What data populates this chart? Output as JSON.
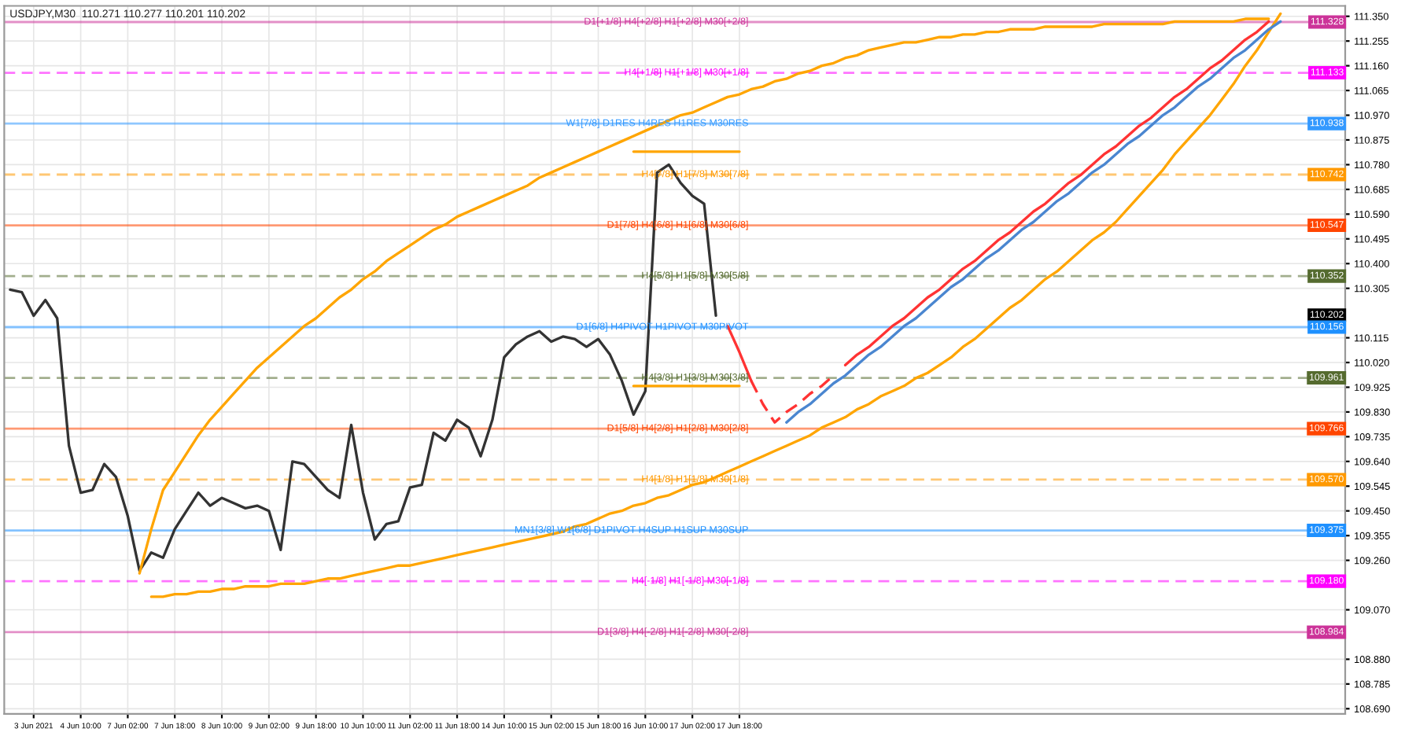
{
  "chart_data": {
    "type": "line",
    "title": "USDJPY,M30  110.271 110.277 110.201 110.202",
    "categories": [
      null,
      null,
      "3 Jun 2021",
      null,
      null,
      null,
      "4 Jun 10:00",
      null,
      null,
      null,
      "7 Jun 02:00",
      null,
      null,
      null,
      "7 Jun 18:00",
      null,
      null,
      null,
      "8 Jun 10:00",
      null,
      null,
      null,
      "9 Jun 02:00",
      null,
      null,
      null,
      "9 Jun 18:00",
      null,
      null,
      null,
      "10 Jun 10:00",
      null,
      null,
      null,
      "11 Jun 02:00",
      null,
      null,
      null,
      "11 Jun 18:00",
      null,
      null,
      null,
      "14 Jun 10:00",
      null,
      null,
      null,
      "15 Jun 02:00",
      null,
      null,
      null,
      "15 Jun 18:00",
      null,
      null,
      null,
      "16 Jun 10:00",
      null,
      null,
      null,
      "17 Jun 02:00",
      null,
      null,
      null,
      "17 Jun 18:00",
      null,
      null,
      null,
      null,
      null,
      null,
      null,
      null,
      null,
      null,
      null,
      null,
      null,
      null,
      null,
      null,
      null,
      null,
      null,
      null,
      null,
      null,
      null,
      null,
      null,
      null,
      null,
      null,
      null,
      null,
      null,
      null,
      null,
      null,
      null,
      null,
      null,
      null,
      null,
      null,
      null,
      null,
      null,
      null,
      null,
      null,
      null,
      null,
      null,
      null,
      null
    ],
    "ylim": [
      108.67,
      111.39
    ],
    "yticks": [
      {
        "value": 111.35,
        "label": "111.350"
      },
      {
        "value": 111.255,
        "label": "111.255"
      },
      {
        "value": 111.16,
        "label": "111.160"
      },
      {
        "value": 111.065,
        "label": "111.065"
      },
      {
        "value": 110.97,
        "label": "110.970"
      },
      {
        "value": 110.875,
        "label": "110.875"
      },
      {
        "value": 110.78,
        "label": "110.780"
      },
      {
        "value": 110.685,
        "label": "110.685"
      },
      {
        "value": 110.59,
        "label": "110.590"
      },
      {
        "value": 110.495,
        "label": "110.495"
      },
      {
        "value": 110.4,
        "label": "110.400"
      },
      {
        "value": 110.305,
        "label": "110.305"
      },
      {
        "value": 110.115,
        "label": "110.115"
      },
      {
        "value": 110.02,
        "label": "110.020"
      },
      {
        "value": 109.925,
        "label": "109.925"
      },
      {
        "value": 109.83,
        "label": "109.830"
      },
      {
        "value": 109.735,
        "label": "109.735"
      },
      {
        "value": 109.64,
        "label": "109.640"
      },
      {
        "value": 109.545,
        "label": "109.545"
      },
      {
        "value": 109.45,
        "label": "109.450"
      },
      {
        "value": 109.355,
        "label": "109.355"
      },
      {
        "value": 109.26,
        "label": "109.260"
      },
      {
        "value": 109.07,
        "label": "109.070"
      },
      {
        "value": 108.88,
        "label": "108.880"
      },
      {
        "value": 108.785,
        "label": "108.785"
      },
      {
        "value": 108.69,
        "label": "108.690"
      }
    ],
    "grid": true,
    "series": [
      {
        "color": "#333333",
        "line_style": "solid",
        "values": [
          110.3,
          110.29,
          110.2,
          110.26,
          110.19,
          109.7,
          109.52,
          109.53,
          109.63,
          109.58,
          109.43,
          109.22,
          109.29,
          109.27,
          109.38,
          109.45,
          109.52,
          109.47,
          109.5,
          109.48,
          109.46,
          109.47,
          109.45,
          109.3,
          109.64,
          109.63,
          109.58,
          109.53,
          109.5,
          109.78,
          109.52,
          109.34,
          109.4,
          109.41,
          109.54,
          109.55,
          109.75,
          109.72,
          109.8,
          109.77,
          109.66,
          109.8,
          110.04,
          110.09,
          110.12,
          110.14,
          110.1,
          110.12,
          110.11,
          110.08,
          110.11,
          110.05,
          109.95,
          109.82,
          109.91,
          110.75,
          110.78,
          110.71,
          110.66,
          110.63,
          110.2,
          null,
          null,
          null,
          null,
          null,
          null,
          null,
          null,
          null,
          null,
          null,
          null,
          null,
          null,
          null,
          null,
          null,
          null,
          null,
          null,
          null,
          null,
          null,
          null,
          null,
          null,
          null,
          null,
          null,
          null,
          null,
          null,
          null,
          null,
          null,
          null,
          null,
          null,
          null,
          null,
          null,
          null,
          null,
          null,
          null,
          null,
          null,
          null,
          null,
          null,
          null,
          null,
          null
        ]
      },
      {
        "color": "#ffa500",
        "line_style": "solid",
        "values": [
          null,
          null,
          null,
          null,
          null,
          null,
          null,
          null,
          null,
          null,
          null,
          109.21,
          109.38,
          109.53,
          109.6,
          109.67,
          109.74,
          109.8,
          109.85,
          109.9,
          109.95,
          110.0,
          110.04,
          110.08,
          110.12,
          110.16,
          110.19,
          110.23,
          110.27,
          110.3,
          110.34,
          110.37,
          110.41,
          110.44,
          110.47,
          110.5,
          110.53,
          110.55,
          110.58,
          110.6,
          110.62,
          110.64,
          110.66,
          110.68,
          110.7,
          110.73,
          110.75,
          110.77,
          110.79,
          110.81,
          110.83,
          110.85,
          110.87,
          110.89,
          110.91,
          110.93,
          110.95,
          110.97,
          110.98,
          111.0,
          111.02,
          111.04,
          111.05,
          111.07,
          111.08,
          111.1,
          111.11,
          111.13,
          111.14,
          111.16,
          111.17,
          111.19,
          111.2,
          111.22,
          111.23,
          111.24,
          111.25,
          111.25,
          111.26,
          111.27,
          111.27,
          111.28,
          111.28,
          111.29,
          111.29,
          111.3,
          111.3,
          111.3,
          111.31,
          111.31,
          111.31,
          111.31,
          111.31,
          111.32,
          111.32,
          111.32,
          111.32,
          111.32,
          111.32,
          111.33,
          111.33,
          111.33,
          111.33,
          111.33,
          111.33,
          111.34,
          111.34,
          111.34,
          null,
          null,
          null,
          null,
          null,
          null
        ]
      },
      {
        "color": "#ffa500",
        "line_style": "solid",
        "values": [
          null,
          null,
          null,
          null,
          null,
          null,
          null,
          null,
          null,
          null,
          null,
          null,
          109.12,
          109.12,
          109.13,
          109.13,
          109.14,
          109.14,
          109.15,
          109.15,
          109.16,
          109.16,
          109.16,
          109.17,
          109.17,
          109.17,
          109.18,
          109.19,
          109.19,
          109.2,
          109.21,
          109.22,
          109.23,
          109.24,
          109.24,
          109.25,
          109.26,
          109.27,
          109.28,
          109.29,
          109.3,
          109.31,
          109.32,
          109.33,
          109.34,
          109.35,
          109.36,
          109.37,
          109.39,
          109.4,
          109.42,
          109.44,
          109.45,
          109.47,
          109.48,
          109.5,
          109.51,
          109.53,
          109.55,
          109.56,
          109.58,
          109.6,
          109.62,
          109.64,
          109.66,
          109.68,
          109.7,
          109.72,
          109.74,
          109.77,
          109.79,
          109.81,
          109.84,
          109.86,
          109.89,
          109.91,
          109.93,
          109.96,
          109.98,
          110.01,
          110.04,
          110.08,
          110.11,
          110.15,
          110.19,
          110.23,
          110.26,
          110.3,
          110.34,
          110.37,
          110.41,
          110.45,
          110.49,
          110.52,
          110.56,
          110.61,
          110.66,
          110.71,
          110.76,
          110.82,
          110.87,
          110.92,
          110.97,
          111.03,
          111.09,
          111.16,
          111.22,
          111.29,
          111.36,
          null,
          null,
          null,
          null,
          null
        ]
      },
      {
        "color": "#ffa500",
        "line_style": "solid",
        "values": [
          null,
          null,
          null,
          null,
          null,
          null,
          null,
          null,
          null,
          null,
          null,
          null,
          null,
          null,
          null,
          null,
          null,
          null,
          null,
          null,
          null,
          null,
          null,
          null,
          null,
          null,
          null,
          null,
          null,
          null,
          null,
          null,
          null,
          null,
          null,
          null,
          null,
          null,
          null,
          null,
          null,
          null,
          null,
          null,
          null,
          null,
          null,
          null,
          null,
          null,
          null,
          null,
          null,
          110.83,
          110.83,
          110.83,
          110.83,
          110.83,
          110.83,
          110.83,
          110.83,
          110.83,
          110.83,
          null,
          null,
          null,
          null,
          null,
          null,
          null,
          null,
          null,
          null,
          null,
          null,
          null,
          null,
          null,
          null,
          null,
          null,
          null,
          null,
          null,
          null,
          null,
          null,
          null,
          null,
          null,
          null,
          null,
          null,
          null,
          null,
          null,
          null,
          null,
          null,
          null,
          null,
          null,
          null,
          null,
          null,
          null,
          null,
          null,
          null,
          null,
          null,
          null,
          null,
          null
        ]
      },
      {
        "color": "#ffa500",
        "line_style": "solid",
        "values": [
          null,
          null,
          null,
          null,
          null,
          null,
          null,
          null,
          null,
          null,
          null,
          null,
          null,
          null,
          null,
          null,
          null,
          null,
          null,
          null,
          null,
          null,
          null,
          null,
          null,
          null,
          null,
          null,
          null,
          null,
          null,
          null,
          null,
          null,
          null,
          null,
          null,
          null,
          null,
          null,
          null,
          null,
          null,
          null,
          null,
          null,
          null,
          null,
          null,
          null,
          null,
          null,
          null,
          109.93,
          109.93,
          109.93,
          109.93,
          109.93,
          109.93,
          109.93,
          109.93,
          109.93,
          109.93,
          null,
          null,
          null,
          null,
          null,
          null,
          null,
          null,
          null,
          null,
          null,
          null,
          null,
          null,
          null,
          null,
          null,
          null,
          null,
          null,
          null,
          null,
          null,
          null,
          null,
          null,
          null,
          null,
          null,
          null,
          null,
          null,
          null,
          null,
          null,
          null,
          null,
          null,
          null,
          null,
          null,
          null,
          null,
          null,
          null,
          null,
          null,
          null,
          null,
          null,
          null
        ]
      },
      {
        "color": "#ff3333",
        "line_style": "solid",
        "values": [
          null,
          null,
          null,
          null,
          null,
          null,
          null,
          null,
          null,
          null,
          null,
          null,
          null,
          null,
          null,
          null,
          null,
          null,
          null,
          null,
          null,
          null,
          null,
          null,
          null,
          null,
          null,
          null,
          null,
          null,
          null,
          null,
          null,
          null,
          null,
          null,
          null,
          null,
          null,
          null,
          null,
          null,
          null,
          null,
          null,
          null,
          null,
          null,
          null,
          null,
          null,
          null,
          null,
          null,
          null,
          null,
          null,
          null,
          null,
          null,
          null,
          110.16,
          110.06,
          109.95,
          null,
          null,
          null,
          null,
          null,
          null,
          null,
          null,
          null,
          null,
          null,
          null,
          null,
          null,
          null,
          null,
          null,
          null,
          null,
          null,
          null,
          null,
          null,
          null,
          null,
          null,
          null,
          null,
          null,
          null,
          null,
          null,
          null,
          null,
          null,
          null,
          null,
          null,
          null,
          null,
          null,
          null,
          null,
          null,
          null,
          null,
          null,
          null,
          null,
          null
        ]
      },
      {
        "color": "#ff3333",
        "line_style": "dashed",
        "values": [
          null,
          null,
          null,
          null,
          null,
          null,
          null,
          null,
          null,
          null,
          null,
          null,
          null,
          null,
          null,
          null,
          null,
          null,
          null,
          null,
          null,
          null,
          null,
          null,
          null,
          null,
          null,
          null,
          null,
          null,
          null,
          null,
          null,
          null,
          null,
          null,
          null,
          null,
          null,
          null,
          null,
          null,
          null,
          null,
          null,
          null,
          null,
          null,
          null,
          null,
          null,
          null,
          null,
          null,
          null,
          null,
          null,
          null,
          null,
          null,
          null,
          null,
          null,
          109.95,
          109.86,
          109.79,
          109.83,
          109.86,
          109.9,
          109.93,
          109.97,
          null,
          null,
          null,
          null,
          null,
          null,
          null,
          null,
          null,
          null,
          null,
          null,
          null,
          null,
          null,
          null,
          null,
          null,
          null,
          null,
          null,
          null,
          null,
          null,
          null,
          null,
          null,
          null,
          null,
          null,
          null,
          null,
          null,
          null,
          null,
          null,
          null,
          null,
          null,
          null,
          null,
          null,
          null
        ]
      },
      {
        "color": "#4a86d0",
        "line_style": "solid",
        "values": [
          null,
          null,
          null,
          null,
          null,
          null,
          null,
          null,
          null,
          null,
          null,
          null,
          null,
          null,
          null,
          null,
          null,
          null,
          null,
          null,
          null,
          null,
          null,
          null,
          null,
          null,
          null,
          null,
          null,
          null,
          null,
          null,
          null,
          null,
          null,
          null,
          null,
          null,
          null,
          null,
          null,
          null,
          null,
          null,
          null,
          null,
          null,
          null,
          null,
          null,
          null,
          null,
          null,
          null,
          null,
          null,
          null,
          null,
          null,
          null,
          null,
          null,
          null,
          null,
          null,
          null,
          109.79,
          109.83,
          109.86,
          109.9,
          109.94,
          109.97,
          110.01,
          110.05,
          110.08,
          110.12,
          110.16,
          110.19,
          110.23,
          110.27,
          110.31,
          110.34,
          110.38,
          110.42,
          110.45,
          110.49,
          110.53,
          110.56,
          110.6,
          110.64,
          110.67,
          110.71,
          110.75,
          110.78,
          110.82,
          110.86,
          110.89,
          110.93,
          110.97,
          111.0,
          111.04,
          111.08,
          111.11,
          111.15,
          111.19,
          111.22,
          111.26,
          111.3,
          111.33,
          null,
          null,
          null,
          null,
          null
        ]
      },
      {
        "color": "#ff3333",
        "line_style": "solid",
        "values": [
          null,
          null,
          null,
          null,
          null,
          null,
          null,
          null,
          null,
          null,
          null,
          null,
          null,
          null,
          null,
          null,
          null,
          null,
          null,
          null,
          null,
          null,
          null,
          null,
          null,
          null,
          null,
          null,
          null,
          null,
          null,
          null,
          null,
          null,
          null,
          null,
          null,
          null,
          null,
          null,
          null,
          null,
          null,
          null,
          null,
          null,
          null,
          null,
          null,
          null,
          null,
          null,
          null,
          null,
          null,
          null,
          null,
          null,
          null,
          null,
          null,
          null,
          null,
          null,
          null,
          null,
          null,
          null,
          null,
          null,
          null,
          110.01,
          110.05,
          110.08,
          110.12,
          110.16,
          110.19,
          110.23,
          110.27,
          110.3,
          110.34,
          110.38,
          110.41,
          110.45,
          110.49,
          110.52,
          110.56,
          110.6,
          110.63,
          110.67,
          110.71,
          110.74,
          110.78,
          110.82,
          110.85,
          110.89,
          110.93,
          110.96,
          111.0,
          111.04,
          111.07,
          111.11,
          111.15,
          111.18,
          111.22,
          111.26,
          111.29,
          111.33,
          null,
          null,
          null,
          null,
          null,
          null
        ]
      }
    ],
    "ref_lines": [
      {
        "axis": "y",
        "value": 111.328,
        "label": "D1[+1/8] H4[+2/8] H1[+2/8] M30[+2/8]",
        "color": "#cc3399",
        "line_style": "solid"
      },
      {
        "axis": "y",
        "value": 111.133,
        "label": "H4[+1/8] H1[+1/8] M30[+1/8]",
        "color": "#ff00ff",
        "line_style": "dashed"
      },
      {
        "axis": "y",
        "value": 110.938,
        "label": "W1[7/8] D1RES H4RES H1RES M30RES",
        "color": "#3399ff",
        "line_style": "solid"
      },
      {
        "axis": "y",
        "value": 110.742,
        "label": "H4[7/8] H1[7/8] M30[7/8]",
        "color": "#ff9900",
        "line_style": "dashed"
      },
      {
        "axis": "y",
        "value": 110.547,
        "label": "D1[7/8] H4[6/8] H1[6/8] M30[6/8]",
        "color": "#ff4500",
        "line_style": "solid"
      },
      {
        "axis": "y",
        "value": 110.352,
        "label": "H4[5/8] H1[5/8] M30[5/8]",
        "color": "#556b2f",
        "line_style": "dashed"
      },
      {
        "axis": "y",
        "value": 110.156,
        "label": "D1[6/8] H4PIVOT H1PIVOT M30PIVOT",
        "color": "#1e90ff",
        "line_style": "solid"
      },
      {
        "axis": "y",
        "value": 109.961,
        "label": "H4[3/8] H1[3/8] M30[3/8]",
        "color": "#556b2f",
        "line_style": "dashed"
      },
      {
        "axis": "y",
        "value": 109.766,
        "label": "D1[5/8] H4[2/8] H1[2/8] M30[2/8]",
        "color": "#ff4500",
        "line_style": "solid"
      },
      {
        "axis": "y",
        "value": 109.57,
        "label": "H4[1/8] H1[1/8] M30[1/8]",
        "color": "#ff9900",
        "line_style": "dashed"
      },
      {
        "axis": "y",
        "value": 109.375,
        "label": "MN1[3/8] W1[6/8] D1PIVOT H4SUP H1SUP M30SUP",
        "color": "#1e90ff",
        "line_style": "solid"
      },
      {
        "axis": "y",
        "value": 109.18,
        "label": "H4[-1/8] H1[-1/8] M30[-1/8]",
        "color": "#ff00ff",
        "line_style": "dashed"
      },
      {
        "axis": "y",
        "value": 108.984,
        "label": "D1[3/8] H4[-2/8] H1[-2/8] M30[-2/8]",
        "color": "#cc3399",
        "line_style": "solid"
      }
    ],
    "annotations": [
      {
        "text": "111.328",
        "y": 111.328
      },
      {
        "text": "111.133",
        "y": 111.133
      },
      {
        "text": "110.938",
        "y": 110.938
      },
      {
        "text": "110.742",
        "y": 110.742
      },
      {
        "text": "110.547",
        "y": 110.547
      },
      {
        "text": "110.352",
        "y": 110.352
      },
      {
        "text": "110.202",
        "y": 110.202
      },
      {
        "text": "110.156",
        "y": 110.156
      },
      {
        "text": "109.961",
        "y": 109.961
      },
      {
        "text": "109.766",
        "y": 109.766
      },
      {
        "text": "109.570",
        "y": 109.57
      },
      {
        "text": "109.375",
        "y": 109.375
      },
      {
        "text": "109.180",
        "y": 109.18
      },
      {
        "text": "108.984",
        "y": 108.984
      }
    ]
  }
}
